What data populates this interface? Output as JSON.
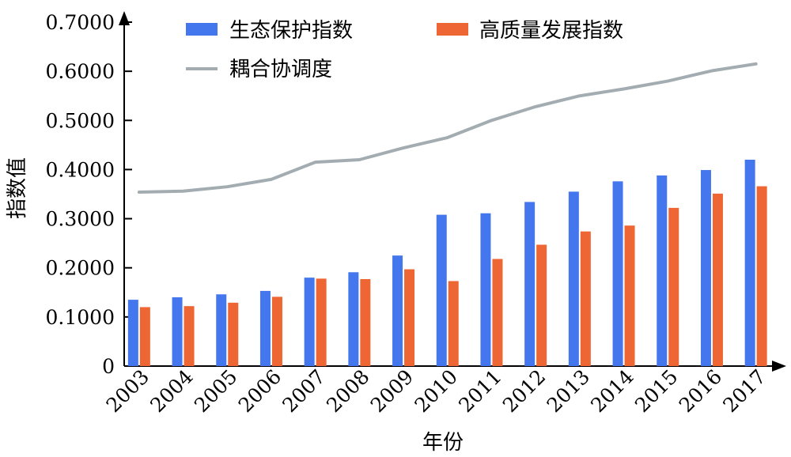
{
  "chart_data": {
    "type": "bar",
    "categories": [
      "2003",
      "2004",
      "2005",
      "2006",
      "2007",
      "2008",
      "2009",
      "2010",
      "2011",
      "2012",
      "2013",
      "2014",
      "2015",
      "2016",
      "2017"
    ],
    "series": [
      {
        "name": "生态保护指数",
        "type": "bar",
        "color": "#4477ee",
        "values": [
          0.135,
          0.14,
          0.146,
          0.153,
          0.18,
          0.191,
          0.225,
          0.308,
          0.311,
          0.334,
          0.355,
          0.376,
          0.388,
          0.399,
          0.42
        ]
      },
      {
        "name": "高质量发展指数",
        "type": "bar",
        "color": "#ee6633",
        "values": [
          0.12,
          0.122,
          0.129,
          0.141,
          0.178,
          0.177,
          0.197,
          0.173,
          0.218,
          0.247,
          0.274,
          0.286,
          0.322,
          0.351,
          0.366
        ]
      },
      {
        "name": "耦合协调度",
        "type": "line",
        "color": "#a3adb1",
        "values": [
          0.354,
          0.356,
          0.365,
          0.38,
          0.415,
          0.42,
          0.444,
          0.465,
          0.5,
          0.528,
          0.55,
          0.564,
          0.58,
          0.601,
          0.615
        ]
      }
    ],
    "yticks": [
      "0",
      "0.1000",
      "0.2000",
      "0.3000",
      "0.4000",
      "0.5000",
      "0.6000",
      "0.7000"
    ],
    "ylim": [
      0,
      0.7
    ],
    "xlabel": "年份",
    "ylabel": "指数值",
    "legend_position": "top"
  }
}
